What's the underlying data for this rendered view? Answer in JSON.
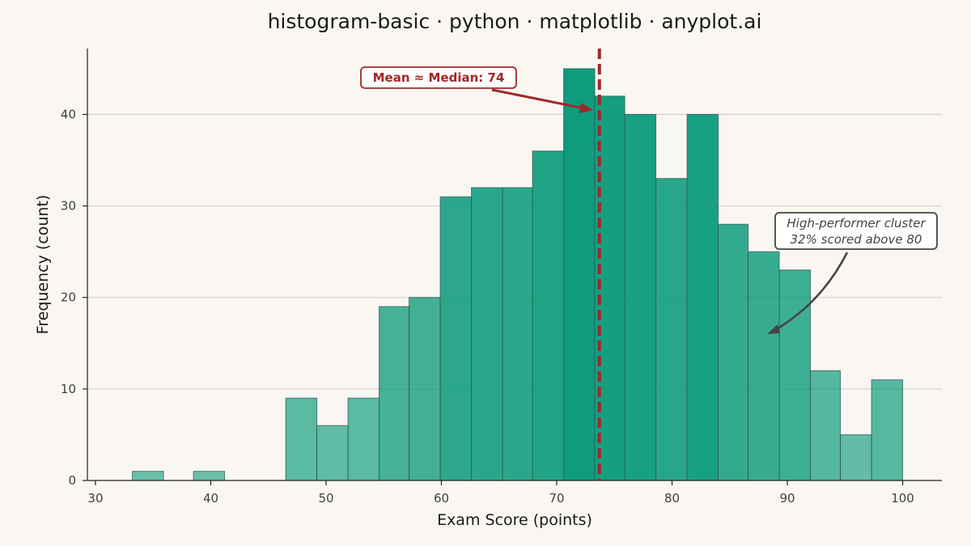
{
  "chart_data": {
    "type": "bar",
    "title": "histogram-basic · python · matplotlib · anyplot.ai",
    "xlabel": "Exam Score (points)",
    "ylabel": "Frequency (count)",
    "xlim": [
      29.3,
      103.4
    ],
    "ylim": [
      0,
      47.2
    ],
    "xticks": [
      30,
      40,
      50,
      60,
      70,
      80,
      90,
      100
    ],
    "yticks": [
      0,
      10,
      20,
      30,
      40
    ],
    "grid": "horizontal",
    "bins": [
      {
        "x0": 33.2,
        "x1": 35.9,
        "count": 1
      },
      {
        "x0": 35.9,
        "x1": 38.5,
        "count": 0
      },
      {
        "x0": 38.5,
        "x1": 41.2,
        "count": 1
      },
      {
        "x0": 41.2,
        "x1": 43.9,
        "count": 0
      },
      {
        "x0": 43.9,
        "x1": 46.5,
        "count": 0
      },
      {
        "x0": 46.5,
        "x1": 49.2,
        "count": 9
      },
      {
        "x0": 49.2,
        "x1": 51.9,
        "count": 6
      },
      {
        "x0": 51.9,
        "x1": 54.6,
        "count": 9
      },
      {
        "x0": 54.6,
        "x1": 57.2,
        "count": 19
      },
      {
        "x0": 57.2,
        "x1": 59.9,
        "count": 20
      },
      {
        "x0": 59.9,
        "x1": 62.6,
        "count": 31
      },
      {
        "x0": 62.6,
        "x1": 65.3,
        "count": 32
      },
      {
        "x0": 65.3,
        "x1": 67.9,
        "count": 32
      },
      {
        "x0": 67.9,
        "x1": 70.6,
        "count": 36
      },
      {
        "x0": 70.6,
        "x1": 73.3,
        "count": 45
      },
      {
        "x0": 73.3,
        "x1": 75.9,
        "count": 42
      },
      {
        "x0": 75.9,
        "x1": 78.6,
        "count": 40
      },
      {
        "x0": 78.6,
        "x1": 81.3,
        "count": 33
      },
      {
        "x0": 81.3,
        "x1": 84.0,
        "count": 40
      },
      {
        "x0": 84.0,
        "x1": 86.6,
        "count": 28
      },
      {
        "x0": 86.6,
        "x1": 89.3,
        "count": 25
      },
      {
        "x0": 89.3,
        "x1": 92.0,
        "count": 23
      },
      {
        "x0": 92.0,
        "x1": 94.6,
        "count": 12
      },
      {
        "x0": 94.6,
        "x1": 97.3,
        "count": 5
      },
      {
        "x0": 97.3,
        "x1": 100.0,
        "count": 11
      }
    ],
    "mean_line": {
      "x": 73.7,
      "label": "Mean ≈ Median: 74"
    },
    "annotations": {
      "high_performer": [
        "High-performer cluster",
        "32% scored above 80"
      ]
    },
    "colors": {
      "bar": "#0E9C7C",
      "mean": "#A0282A",
      "annotation": "#444444",
      "background": "#FAF7F2"
    }
  }
}
